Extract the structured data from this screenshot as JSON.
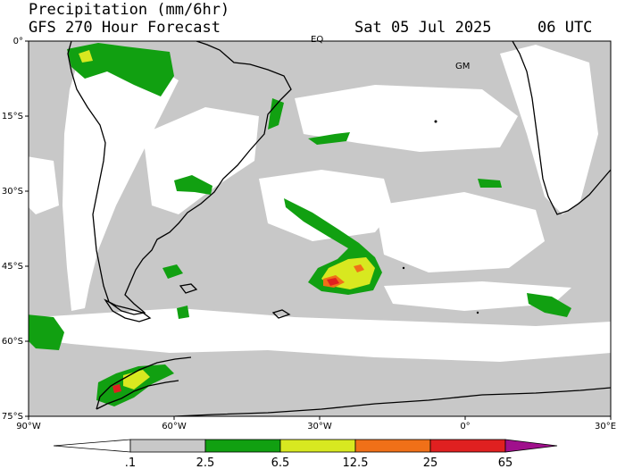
{
  "header": {
    "title": "Precipitation (mm/6hr)",
    "model": "GFS 270 Hour Forecast",
    "date": "Sat 05 Jul 2025",
    "time": "06 UTC"
  },
  "map": {
    "region": "South Atlantic / South America / Antarctic Peninsula",
    "lat_labels": [
      "0°",
      "15°S",
      "30°S",
      "45°S",
      "60°S",
      "75°S"
    ],
    "lon_labels": [
      "90°W",
      "60°W",
      "30°W",
      "0°",
      "30°E"
    ],
    "place_labels": [
      "EQ",
      "GM"
    ]
  },
  "colorbar": {
    "ticks": [
      ".1",
      "2.5",
      "6.5",
      "12.5",
      "25",
      "65"
    ],
    "colors": [
      "#ffffff",
      "#c8c8c8",
      "#11a011",
      "#d8e820",
      "#f07018",
      "#e02020",
      "#a0108c"
    ]
  },
  "colors": {
    "precip_light": "#c8c8c8",
    "precip_green": "#11a011",
    "precip_yellow": "#d8e820",
    "precip_orange": "#f07018",
    "precip_red": "#e02020",
    "precip_purple": "#a0108c",
    "coast": "#000000"
  }
}
